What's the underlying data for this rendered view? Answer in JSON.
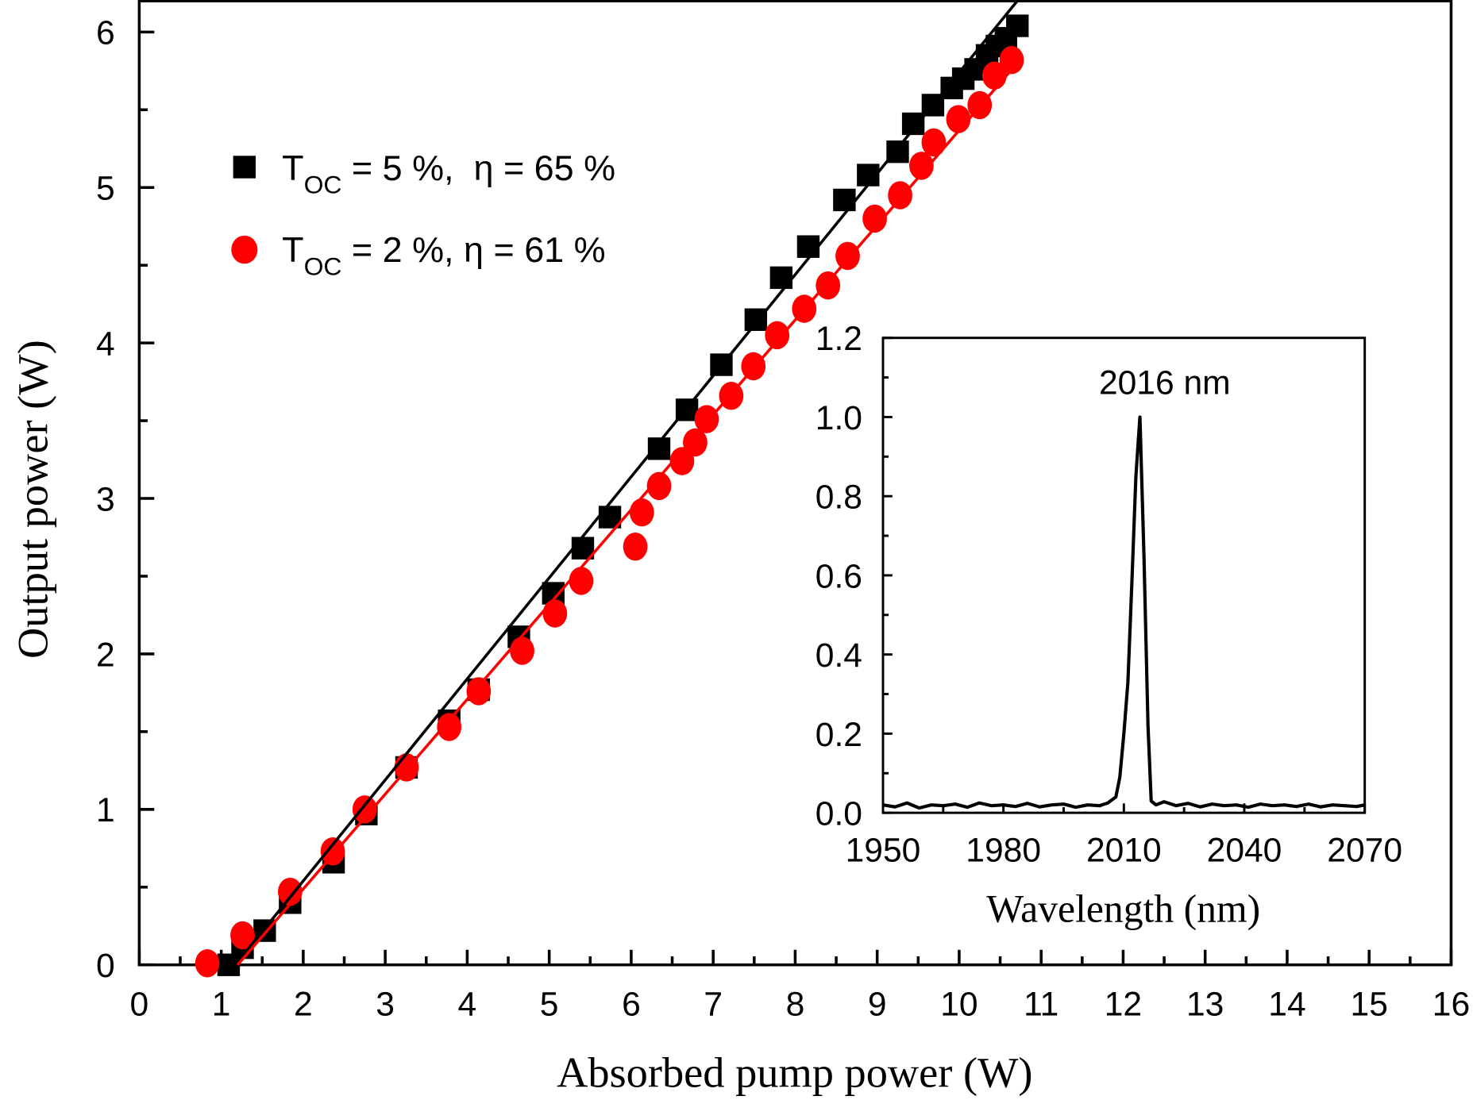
{
  "chart_data": [
    {
      "type": "scatter",
      "xlabel": "Absorbed pump power (W)",
      "ylabel": "Output power (W)",
      "xlim": [
        0,
        16
      ],
      "ylim": [
        0,
        6.2
      ],
      "xticks": [
        0,
        1,
        2,
        3,
        4,
        5,
        6,
        7,
        8,
        9,
        10,
        11,
        12,
        13,
        14,
        15,
        16
      ],
      "yticks": [
        0,
        1,
        2,
        3,
        4,
        5,
        6
      ],
      "grid": false,
      "legend_placement": "top-left",
      "series": [
        {
          "name": "T_OC = 5%,  η = 65%",
          "legend": {
            "t": "T",
            "sub": "OC",
            "rest": " = 5 %,  η = 65 %"
          },
          "marker": "square",
          "color": "#000000",
          "x": [
            1.09,
            1.26,
            1.53,
            1.84,
            2.37,
            2.77,
            3.26,
            3.78,
            4.14,
            4.63,
            5.05,
            5.41,
            5.74,
            6.34,
            6.68,
            7.1,
            7.52,
            7.83,
            8.16,
            8.6,
            8.89,
            9.25,
            9.44,
            9.68,
            9.91,
            10.05,
            10.2,
            10.34,
            10.46,
            10.57,
            10.71
          ],
          "y": [
            0.0,
            0.11,
            0.22,
            0.4,
            0.66,
            0.97,
            1.27,
            1.57,
            1.77,
            2.11,
            2.39,
            2.68,
            2.88,
            3.32,
            3.57,
            3.86,
            4.15,
            4.42,
            4.62,
            4.92,
            5.08,
            5.23,
            5.41,
            5.53,
            5.64,
            5.7,
            5.76,
            5.85,
            5.91,
            5.96,
            6.04
          ],
          "fit": {
            "slope": 0.65,
            "x_intercept": 1.17,
            "x_end": 10.72
          }
        },
        {
          "name": "T_OC = 2%, η = 61%",
          "legend": {
            "t": "T",
            "sub": "OC",
            "rest": " = 2 %, η = 61 %"
          },
          "marker": "circle",
          "color": "#ff0000",
          "x": [
            0.83,
            1.26,
            1.84,
            2.36,
            2.75,
            3.26,
            3.78,
            4.14,
            4.67,
            5.07,
            5.39,
            6.05,
            6.13,
            6.34,
            6.62,
            6.78,
            6.92,
            7.22,
            7.49,
            7.78,
            8.11,
            8.4,
            8.64,
            8.97,
            9.28,
            9.54,
            9.69,
            9.99,
            10.25,
            10.43,
            10.64
          ],
          "y": [
            0.01,
            0.19,
            0.47,
            0.73,
            1.0,
            1.27,
            1.53,
            1.76,
            2.02,
            2.26,
            2.47,
            2.69,
            2.91,
            3.08,
            3.24,
            3.36,
            3.51,
            3.66,
            3.85,
            4.05,
            4.22,
            4.37,
            4.56,
            4.8,
            4.95,
            5.14,
            5.29,
            5.44,
            5.53,
            5.72,
            5.82
          ],
          "fit": {
            "slope": 0.61,
            "x_intercept": 1.2,
            "x_end": 10.64
          }
        }
      ]
    },
    {
      "type": "line",
      "inset": true,
      "xlabel": "Wavelength (nm)",
      "ylabel": "",
      "xlim": [
        1950,
        2070
      ],
      "ylim": [
        0,
        1.2
      ],
      "xticks": [
        1950,
        1980,
        2010,
        2040,
        2070
      ],
      "yticks": [
        "0.0",
        "0.2",
        "0.4",
        "0.6",
        "0.8",
        "1.0",
        "1.2"
      ],
      "annotation": "2016 nm",
      "color": "#000000",
      "x": [
        1950,
        1953,
        1956,
        1959,
        1962,
        1965,
        1968,
        1971,
        1974,
        1977,
        1980,
        1983,
        1986,
        1989,
        1992,
        1995,
        1998,
        2001,
        2004,
        2006,
        2008,
        2009,
        2010,
        2011,
        2012,
        2013,
        2014,
        2015,
        2016,
        2016.8,
        2018,
        2020,
        2023,
        2026,
        2029,
        2032,
        2035,
        2038,
        2041,
        2044,
        2047,
        2050,
        2053,
        2056,
        2059,
        2062,
        2065,
        2068,
        2070
      ],
      "y": [
        0.02,
        0.015,
        0.025,
        0.012,
        0.02,
        0.018,
        0.022,
        0.014,
        0.025,
        0.018,
        0.02,
        0.016,
        0.024,
        0.015,
        0.02,
        0.022,
        0.014,
        0.02,
        0.018,
        0.025,
        0.04,
        0.09,
        0.2,
        0.33,
        0.58,
        0.85,
        1.0,
        0.65,
        0.22,
        0.03,
        0.02,
        0.028,
        0.018,
        0.024,
        0.015,
        0.022,
        0.018,
        0.02,
        0.014,
        0.022,
        0.018,
        0.02,
        0.016,
        0.022,
        0.015,
        0.02,
        0.018,
        0.016,
        0.02
      ]
    }
  ]
}
